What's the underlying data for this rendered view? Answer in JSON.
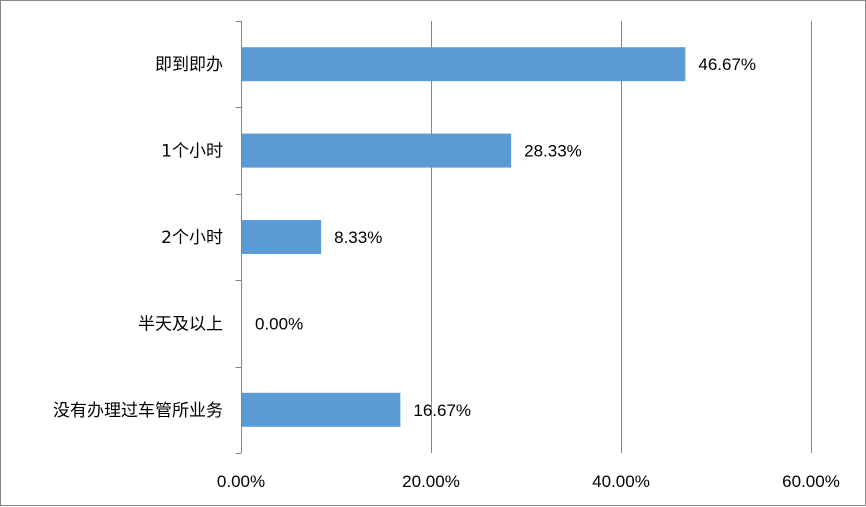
{
  "chart_data": {
    "type": "bar",
    "orientation": "horizontal",
    "categories": [
      "即到即办",
      "1个小时",
      "2个小时",
      "半天及以上",
      "没有办理过车管所业务"
    ],
    "values": [
      46.67,
      28.33,
      8.33,
      0.0,
      16.67
    ],
    "data_labels": [
      "46.67%",
      "28.33%",
      "8.33%",
      "0.00%",
      "16.67%"
    ],
    "x_ticks": [
      0,
      20,
      40,
      60
    ],
    "x_tick_labels": [
      "0.00%",
      "20.00%",
      "40.00%",
      "60.00%"
    ],
    "xlim": [
      0,
      60
    ],
    "grid": "vertical",
    "legend": "none",
    "bar_color": "#5B9BD5"
  }
}
